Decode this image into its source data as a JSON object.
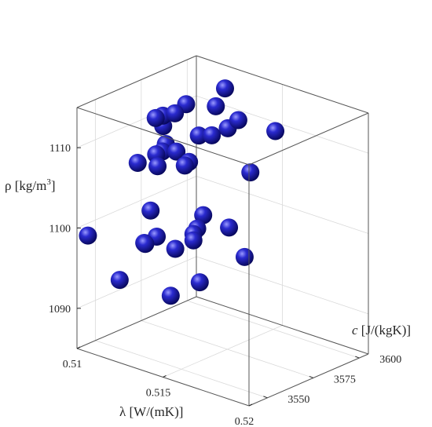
{
  "chart_data": {
    "type": "scatter3d",
    "title": "",
    "xlabel": "λ [W/(mK)]",
    "ylabel": "c [J/(kgK)]",
    "zlabel": "ρ [kg/m³]",
    "zlabel_main": "ρ [kg/m",
    "zlabel_sup": "3",
    "zlabel_tail": "]",
    "ylabel_italic": "c",
    "ylabel_rest": " [J/(kgK)]",
    "xlim": [
      0.51,
      0.52
    ],
    "ylim": [
      3540,
      3605
    ],
    "zlim": [
      1085,
      1115
    ],
    "xticks": [
      0.51,
      0.515,
      0.52
    ],
    "xtick_labels": [
      "0.51",
      "0.515",
      "0.52"
    ],
    "yticks": [
      3550,
      3575,
      3600
    ],
    "ytick_labels": [
      "3550",
      "3575",
      "3600"
    ],
    "zticks": [
      1090,
      1100,
      1110
    ],
    "ztick_labels": [
      "1090",
      "1100",
      "1110"
    ],
    "grid": true,
    "marker_color": "#1a1aa6",
    "points": [
      {
        "x": 0.5122,
        "y": 3600.0,
        "z": 1113.0
      },
      {
        "x": 0.5138,
        "y": 3580.0,
        "z": 1113.9
      },
      {
        "x": 0.5111,
        "y": 3583.0,
        "z": 1110.8
      },
      {
        "x": 0.5109,
        "y": 3591.0,
        "z": 1111.0
      },
      {
        "x": 0.5134,
        "y": 3596.0,
        "z": 1110.3
      },
      {
        "x": 0.513,
        "y": 3594.0,
        "z": 1109.2
      },
      {
        "x": 0.5104,
        "y": 3583.0,
        "z": 1110.0
      },
      {
        "x": 0.5118,
        "y": 3566.0,
        "z": 1112.4
      },
      {
        "x": 0.5101,
        "y": 3586.0,
        "z": 1108.2
      },
      {
        "x": 0.5141,
        "y": 3575.0,
        "z": 1111.0
      },
      {
        "x": 0.511,
        "y": 3579.0,
        "z": 1107.3
      },
      {
        "x": 0.5109,
        "y": 3578.0,
        "z": 1106.4
      },
      {
        "x": 0.5163,
        "y": 3589.0,
        "z": 1111.7
      },
      {
        "x": 0.5114,
        "y": 3570.0,
        "z": 1107.2
      },
      {
        "x": 0.5118,
        "y": 3567.0,
        "z": 1106.3
      },
      {
        "x": 0.5126,
        "y": 3582.0,
        "z": 1109.2
      },
      {
        "x": 0.5115,
        "y": 3559.0,
        "z": 1107.3
      },
      {
        "x": 0.5152,
        "y": 3550.0,
        "z": 1110.5
      },
      {
        "x": 0.5129,
        "y": 3567.0,
        "z": 1108.9
      },
      {
        "x": 0.5141,
        "y": 3596.0,
        "z": 1104.3
      },
      {
        "x": 0.5147,
        "y": 3557.0,
        "z": 1109.9
      },
      {
        "x": 0.5129,
        "y": 3550.0,
        "z": 1099.1
      },
      {
        "x": 0.5136,
        "y": 3575.0,
        "z": 1100.7
      },
      {
        "x": 0.514,
        "y": 3568.0,
        "z": 1100.0
      },
      {
        "x": 0.5139,
        "y": 3557.0,
        "z": 1098.5
      },
      {
        "x": 0.5141,
        "y": 3565.0,
        "z": 1099.7
      },
      {
        "x": 0.5135,
        "y": 3590.0,
        "z": 1097.6
      },
      {
        "x": 0.5141,
        "y": 3565.0,
        "z": 1098.9
      },
      {
        "x": 0.5143,
        "y": 3591.0,
        "z": 1094.4
      },
      {
        "x": 0.5109,
        "y": 3575.0,
        "z": 1096.1
      },
      {
        "x": 0.5085,
        "y": 3560.0,
        "z": 1096.0
      },
      {
        "x": 0.5083,
        "y": 3596.0,
        "z": 1095.4
      },
      {
        "x": 0.5106,
        "y": 3571.0,
        "z": 1095.5
      },
      {
        "x": 0.5112,
        "y": 3552.0,
        "z": 1093.2
      },
      {
        "x": 0.5134,
        "y": 3575.0,
        "z": 1092.2
      },
      {
        "x": 0.5131,
        "y": 3562.0,
        "z": 1091.6
      }
    ]
  }
}
